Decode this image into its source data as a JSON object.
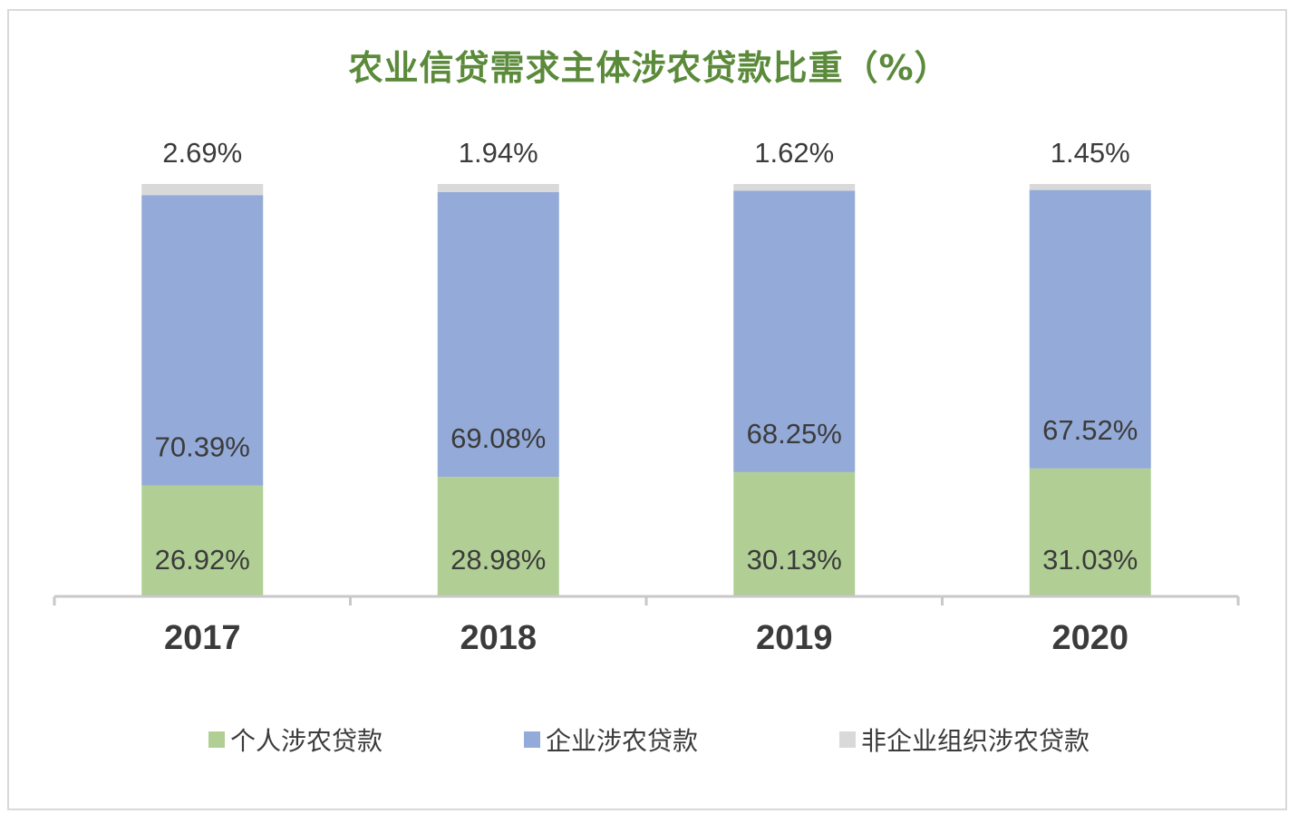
{
  "chart_data": {
    "type": "bar",
    "stacked": true,
    "percent_stacked": true,
    "title": "农业信贷需求主体涉农贷款比重（%）",
    "xlabel": "",
    "ylabel": "",
    "ylim": [
      0,
      100
    ],
    "grid": false,
    "legend_position": "bottom",
    "categories": [
      "2017",
      "2018",
      "2019",
      "2020"
    ],
    "series": [
      {
        "name": "个人涉农贷款",
        "color": "#b1cf95",
        "values": [
          26.92,
          28.98,
          30.13,
          31.03
        ],
        "labels": [
          "26.92%",
          "28.98%",
          "30.13%",
          "31.03%"
        ]
      },
      {
        "name": "企业涉农贷款",
        "color": "#94aad8",
        "values": [
          70.39,
          69.08,
          68.25,
          67.52
        ],
        "labels": [
          "70.39%",
          "69.08%",
          "68.25%",
          "67.52%"
        ]
      },
      {
        "name": "非企业组织涉农贷款",
        "color": "#d9d9d9",
        "values": [
          2.69,
          1.94,
          1.62,
          1.45
        ],
        "labels": [
          "2.69%",
          "1.94%",
          "1.62%",
          "1.45%"
        ]
      }
    ]
  },
  "colors": {
    "title": "#5a8a3a",
    "axis": "#c8c8c8",
    "label_text": "#3b3b3b",
    "frame": "#d9d9d9"
  }
}
